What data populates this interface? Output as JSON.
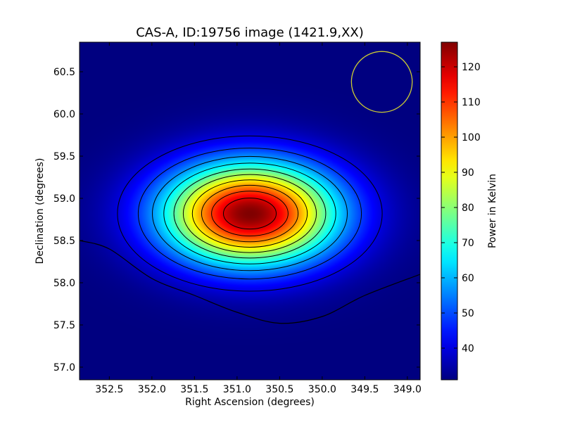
{
  "chart_data": {
    "type": "heatmap",
    "title": "CAS-A, ID:19756 image (1421.9,XX)",
    "xlabel": "Right Ascension (degrees)",
    "ylabel": "Declination (degrees)",
    "xlim": [
      352.85,
      348.85
    ],
    "ylim": [
      56.85,
      60.85
    ],
    "x_inverted": true,
    "x_ticks": [
      {
        "value": 352.5,
        "label": "352.5"
      },
      {
        "value": 352.0,
        "label": "352.0"
      },
      {
        "value": 351.5,
        "label": "351.5"
      },
      {
        "value": 351.0,
        "label": "351.0"
      },
      {
        "value": 350.5,
        "label": "350.5"
      },
      {
        "value": 350.0,
        "label": "350.0"
      },
      {
        "value": 349.5,
        "label": "349.5"
      },
      {
        "value": 349.0,
        "label": "349.0"
      }
    ],
    "y_ticks": [
      {
        "value": 57.0,
        "label": "57.0"
      },
      {
        "value": 57.5,
        "label": "57.5"
      },
      {
        "value": 58.0,
        "label": "58.0"
      },
      {
        "value": 58.5,
        "label": "58.5"
      },
      {
        "value": 59.0,
        "label": "59.0"
      },
      {
        "value": 59.5,
        "label": "59.5"
      },
      {
        "value": 60.0,
        "label": "60.0"
      },
      {
        "value": 60.5,
        "label": "60.5"
      }
    ],
    "colormap": "jet",
    "colorbar": {
      "label": "Power in Kelvin",
      "range": [
        31,
        127
      ],
      "ticks": [
        {
          "value": 40,
          "label": "40"
        },
        {
          "value": 50,
          "label": "50"
        },
        {
          "value": 60,
          "label": "60"
        },
        {
          "value": 70,
          "label": "70"
        },
        {
          "value": 80,
          "label": "80"
        },
        {
          "value": 90,
          "label": "90"
        },
        {
          "value": 100,
          "label": "100"
        },
        {
          "value": 110,
          "label": "110"
        },
        {
          "value": 120,
          "label": "120"
        }
      ]
    },
    "source": {
      "ra": 350.85,
      "dec": 58.82,
      "peak": 127,
      "background": 31,
      "ra_extent": 0.71,
      "dec_extent": 0.42
    },
    "contour_count": 10,
    "low_contour_dec": [
      {
        "ra": 352.85,
        "dec": 58.5
      },
      {
        "ra": 352.5,
        "dec": 58.4
      },
      {
        "ra": 352.0,
        "dec": 58.05
      },
      {
        "ra": 351.5,
        "dec": 57.85
      },
      {
        "ra": 351.0,
        "dec": 57.65
      },
      {
        "ra": 350.5,
        "dec": 57.52
      },
      {
        "ra": 350.0,
        "dec": 57.6
      },
      {
        "ra": 349.5,
        "dec": 57.85
      },
      {
        "ra": 348.85,
        "dec": 58.1
      }
    ],
    "beam_circle": {
      "ra": 349.3,
      "dec": 60.38,
      "radius_deg": 0.36,
      "color": "#cccc33"
    },
    "grid": false
  }
}
